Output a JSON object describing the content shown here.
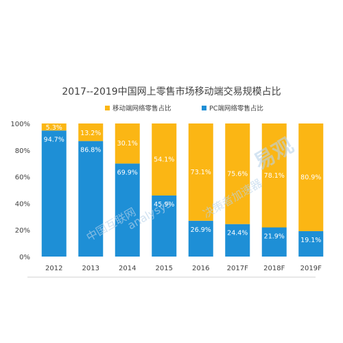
{
  "chart_data": {
    "type": "bar",
    "stacked": true,
    "title": "2017--2019中国网上零售市场移动端交易规模占比",
    "categories": [
      "2012",
      "2013",
      "2014",
      "2015",
      "2016",
      "2017F",
      "2018F",
      "2019F"
    ],
    "series": [
      {
        "name": "PC端网络零售占比",
        "color": "#1e8fd6",
        "values": [
          94.7,
          86.8,
          69.9,
          45.9,
          26.9,
          24.4,
          21.9,
          19.1
        ],
        "labels": [
          "94.7%",
          "86.8%",
          "69.9%",
          "45.9%",
          "26.9%",
          "24.4%",
          "21.9%",
          "19.1%"
        ]
      },
      {
        "name": "移动端网络零售占比",
        "color": "#fbb614",
        "values": [
          5.3,
          13.2,
          30.1,
          54.1,
          73.1,
          75.6,
          78.1,
          80.9
        ],
        "labels": [
          "5.3%",
          "13.2%",
          "30.1%",
          "54.1%",
          "73.1%",
          "75.6%",
          "78.1%",
          "80.9%"
        ]
      }
    ],
    "legend_order": [
      1,
      0
    ],
    "legend_position": "top",
    "y_ticks": [
      "0%",
      "20%",
      "40%",
      "60%",
      "80%",
      "100%"
    ],
    "ylim": [
      0,
      100
    ],
    "grid": false
  },
  "watermark": {
    "brand": "易观",
    "latin": "analysys",
    "tagline": "决策者加速器",
    "tagline2": "中国互联网"
  }
}
